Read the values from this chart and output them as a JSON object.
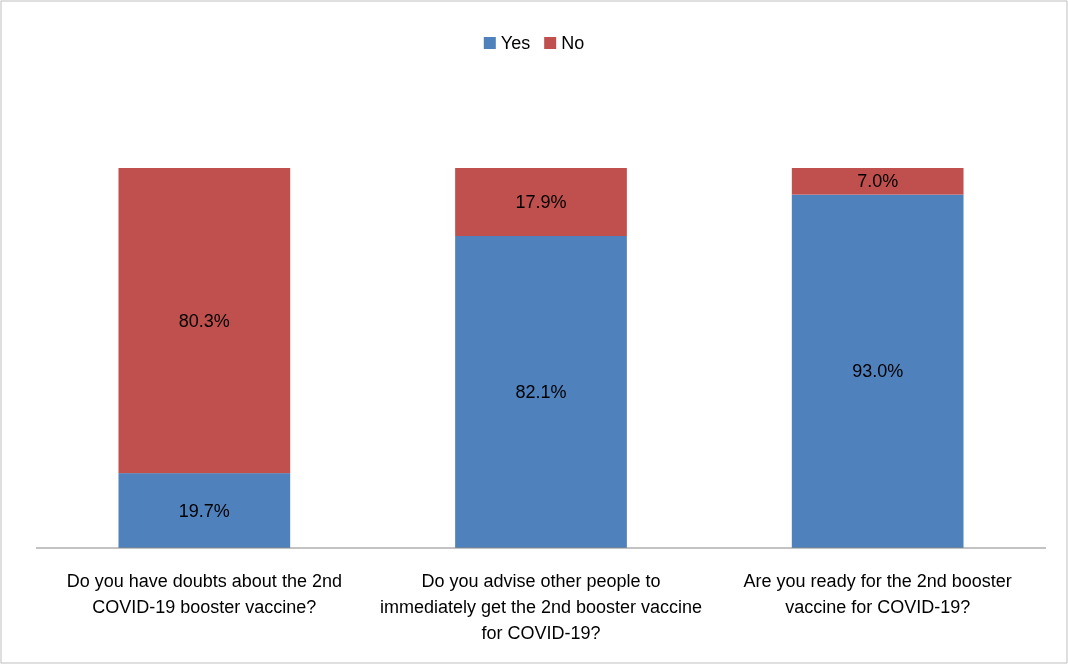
{
  "chart_data": {
    "type": "bar",
    "stacked": true,
    "categories": [
      "Do you have doubts about the 2nd COVID-19 booster vaccine?",
      "Do you advise other people to immediately get the 2nd booster vaccine for COVID-19?",
      "Are you ready for the 2nd booster vaccine for COVID-19?"
    ],
    "series": [
      {
        "name": "Yes",
        "color": "#4f81bd",
        "values": [
          19.7,
          82.1,
          93.0
        ],
        "value_labels": [
          "19.7%",
          "82.1%",
          "93.0%"
        ]
      },
      {
        "name": "No",
        "color": "#c0504d",
        "values": [
          80.3,
          17.9,
          7.0
        ],
        "value_labels": [
          "80.3%",
          "17.9%",
          "7.0%"
        ]
      }
    ],
    "ylim": [
      0,
      100
    ],
    "legend": "top"
  }
}
